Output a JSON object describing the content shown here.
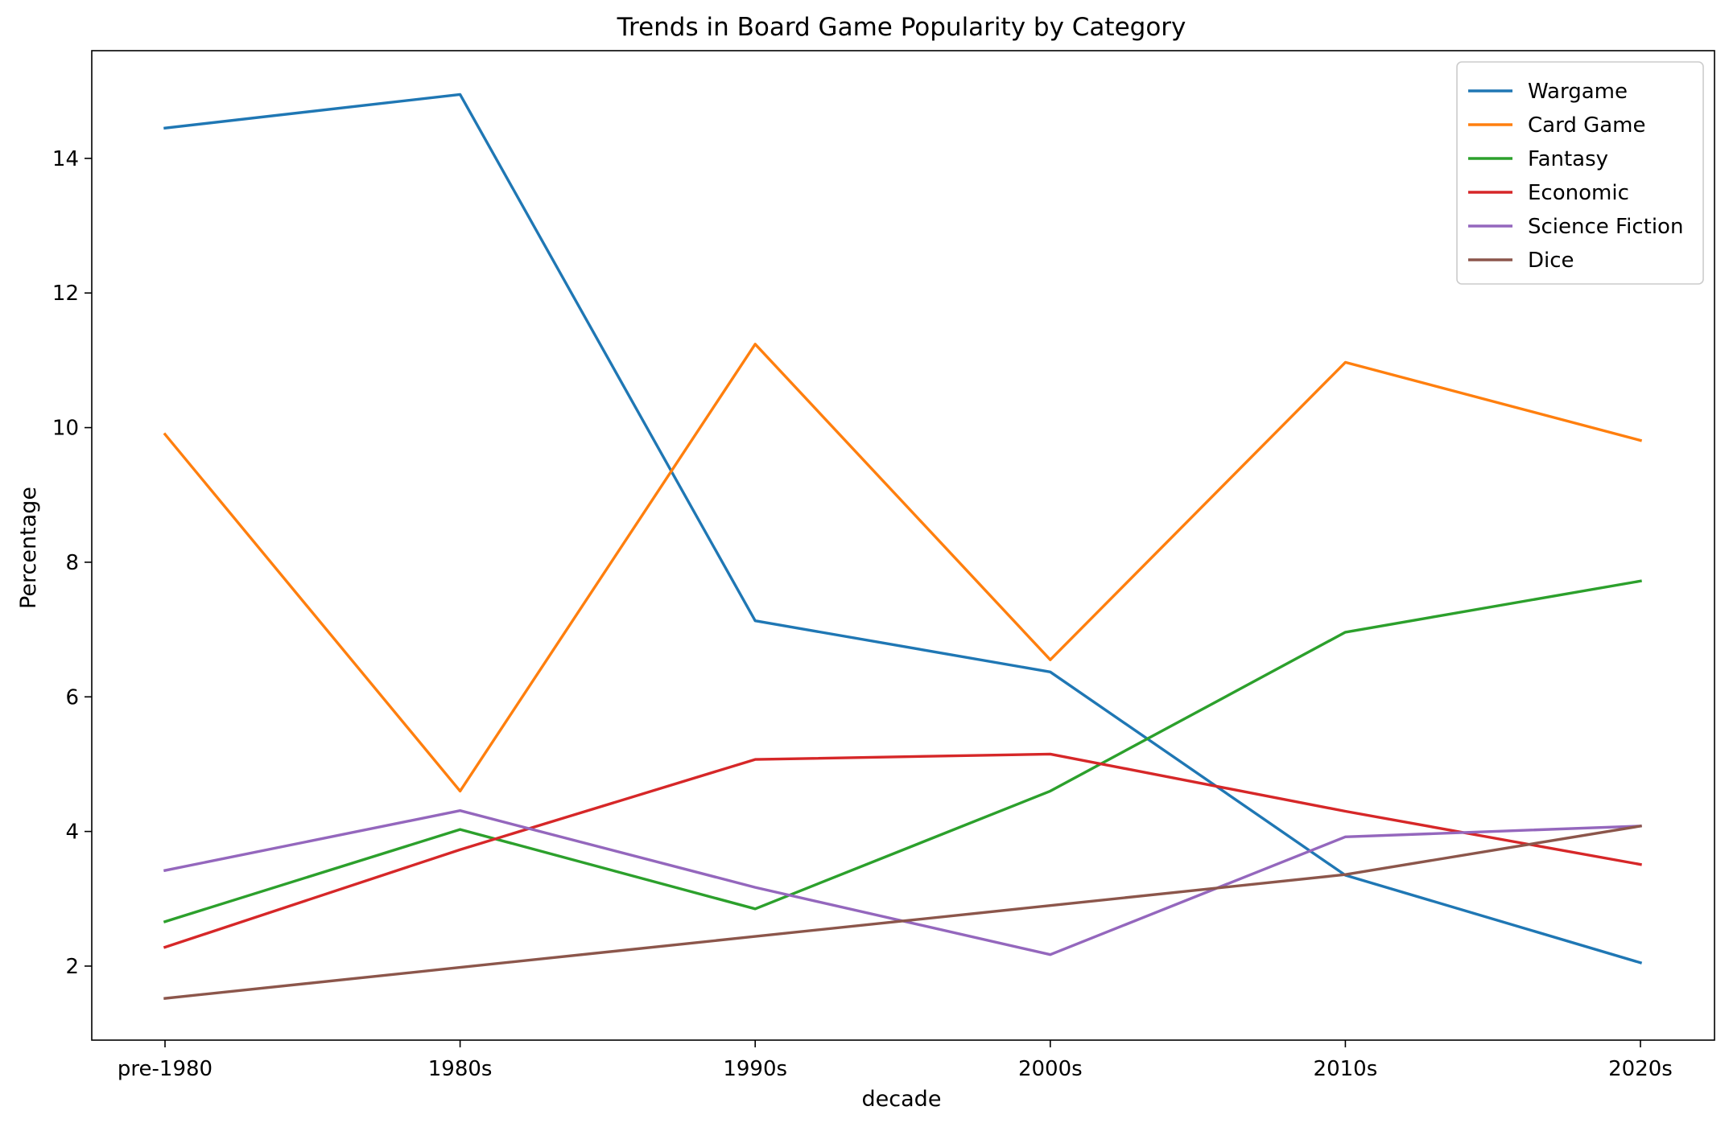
{
  "chart_data": {
    "type": "line",
    "title": "Trends in Board Game Popularity by Category",
    "xlabel": "decade",
    "ylabel": "Percentage",
    "categories": [
      "pre-1980",
      "1980s",
      "1990s",
      "2000s",
      "2010s",
      "2020s"
    ],
    "ylim": [
      0.9,
      15.6
    ],
    "yticks": [
      2,
      4,
      6,
      8,
      10,
      12,
      14
    ],
    "grid": false,
    "legend_position": "top-right",
    "series": [
      {
        "name": "Wargame",
        "color": "#1f77b4",
        "values": [
          14.45,
          14.95,
          7.13,
          6.37,
          3.35,
          2.05
        ]
      },
      {
        "name": "Card Game",
        "color": "#ff7f0e",
        "values": [
          9.9,
          4.6,
          11.24,
          6.55,
          10.97,
          9.81
        ]
      },
      {
        "name": "Fantasy",
        "color": "#2ca02c",
        "values": [
          2.66,
          4.03,
          2.85,
          4.6,
          6.96,
          7.72
        ]
      },
      {
        "name": "Economic",
        "color": "#d62728",
        "values": [
          2.28,
          3.73,
          5.07,
          5.15,
          4.3,
          3.51
        ]
      },
      {
        "name": "Science Fiction",
        "color": "#9467bd",
        "values": [
          3.42,
          4.31,
          3.17,
          2.17,
          3.92,
          4.08
        ]
      },
      {
        "name": "Dice",
        "color": "#8c564b",
        "values": [
          1.52,
          1.98,
          2.44,
          2.9,
          3.36,
          4.08
        ]
      }
    ]
  }
}
